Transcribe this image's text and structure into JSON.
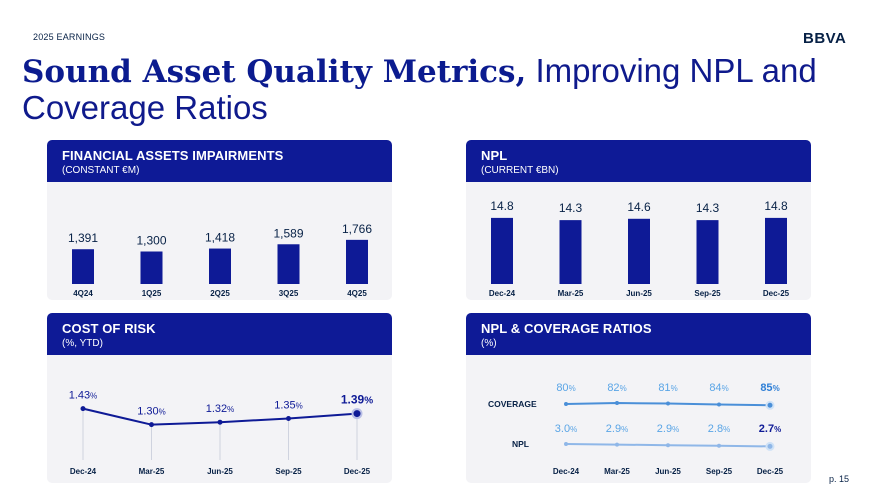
{
  "header": {
    "eyebrow": "2025 EARNINGS",
    "logo": "BBVA",
    "title_bold": "Sound Asset Quality Metrics,",
    "title_rest": " Improving NPL and Coverage Ratios"
  },
  "footer": {
    "page": "p. 15"
  },
  "colors": {
    "navy": "#0e1a96",
    "dark": "#072146",
    "light_blue": "#5aa5e6",
    "panel_bg": "#f3f3f6"
  },
  "panels": {
    "impairments": {
      "title": "FINANCIAL ASSETS IMPAIRMENTS",
      "subtitle": "(CONSTANT €M)"
    },
    "npl": {
      "title": "NPL",
      "subtitle": "(CURRENT €BN)"
    },
    "cor": {
      "title": "COST OF RISK",
      "subtitle": "(%, YTD)"
    },
    "ratios": {
      "title": "NPL & COVERAGE RATIOS",
      "subtitle": "(%)"
    }
  },
  "chart_data": [
    {
      "id": "impairments",
      "type": "bar",
      "title": "FINANCIAL ASSETS IMPAIRMENTS",
      "ylabel": "(CONSTANT €M)",
      "categories": [
        "4Q24",
        "1Q25",
        "2Q25",
        "3Q25",
        "4Q25"
      ],
      "values": [
        1391,
        1300,
        1418,
        1589,
        1766
      ],
      "labels": [
        "1,391",
        "1,300",
        "1,418",
        "1,589",
        "1,766"
      ],
      "ylim": [
        0,
        2000
      ]
    },
    {
      "id": "npl",
      "type": "bar",
      "title": "NPL",
      "ylabel": "(CURRENT €BN)",
      "categories": [
        "Dec-24",
        "Mar-25",
        "Jun-25",
        "Sep-25",
        "Dec-25"
      ],
      "values": [
        14.8,
        14.3,
        14.6,
        14.3,
        14.8
      ],
      "labels": [
        "14.8",
        "14.3",
        "14.6",
        "14.3",
        "14.8"
      ],
      "ylim": [
        0,
        15
      ]
    },
    {
      "id": "cor",
      "type": "line",
      "title": "COST OF RISK",
      "ylabel": "(%, YTD)",
      "categories": [
        "Dec-24",
        "Mar-25",
        "Jun-25",
        "Sep-25",
        "Dec-25"
      ],
      "values": [
        1.43,
        1.3,
        1.32,
        1.35,
        1.39
      ],
      "labels": [
        "1.43",
        "1.30",
        "1.32",
        "1.35",
        "1.39"
      ],
      "unit": "%",
      "ylim": [
        1.2,
        1.5
      ]
    },
    {
      "id": "ratios",
      "type": "line",
      "title": "NPL & COVERAGE RATIOS",
      "ylabel": "(%)",
      "categories": [
        "Dec-24",
        "Mar-25",
        "Jun-25",
        "Sep-25",
        "Dec-25"
      ],
      "unit": "%",
      "series": [
        {
          "name": "COVERAGE",
          "values": [
            80,
            82,
            81,
            84,
            85
          ],
          "labels": [
            "80",
            "82",
            "81",
            "84",
            "85"
          ]
        },
        {
          "name": "NPL",
          "values": [
            3.0,
            2.9,
            2.9,
            2.8,
            2.7
          ],
          "labels": [
            "3.0",
            "2.9",
            "2.9",
            "2.8",
            "2.7"
          ]
        }
      ]
    }
  ]
}
